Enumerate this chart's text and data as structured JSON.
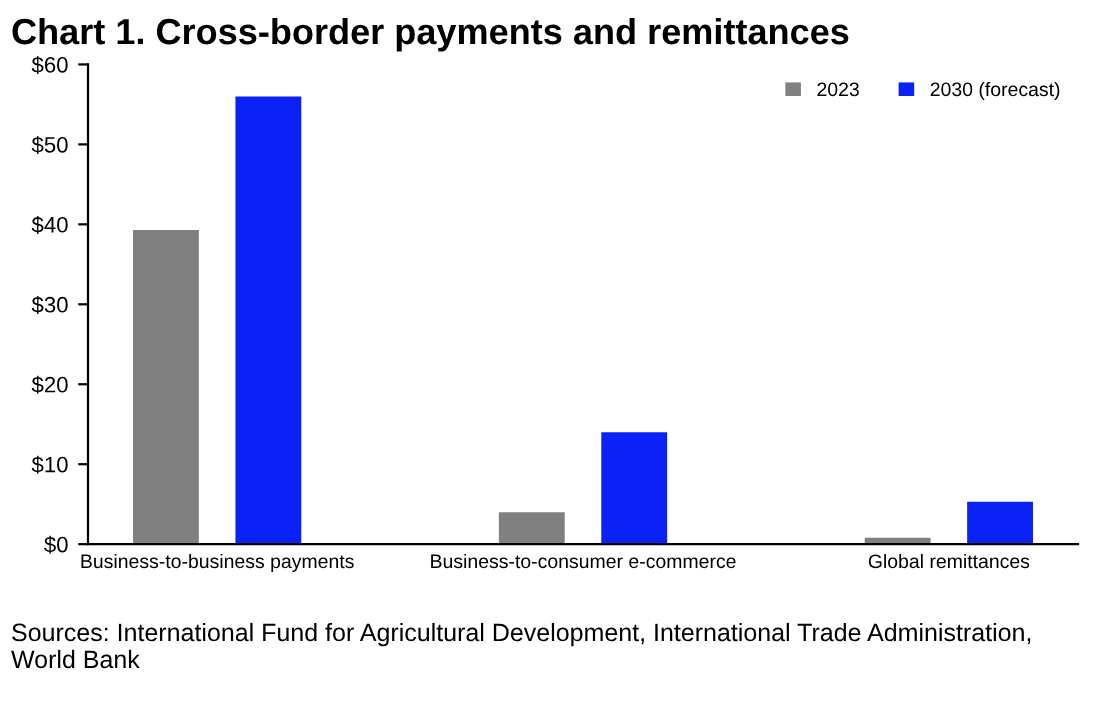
{
  "chart_data": {
    "type": "bar",
    "title": "Chart 1. Cross-border payments and remittances",
    "categories": [
      "Business-to-business payments",
      "Business-to-consumer e-commerce",
      "Global remittances"
    ],
    "series": [
      {
        "name": "2023",
        "color": "#808080",
        "values": [
          39.3,
          4,
          0.8
        ]
      },
      {
        "name": "2030 (forecast)",
        "color": "#0a22f5",
        "values": [
          56,
          14,
          5.3
        ]
      }
    ],
    "ylim": [
      0,
      60
    ],
    "yticks": [
      {
        "value": 0,
        "label": "$0"
      },
      {
        "value": 10,
        "label": "$10"
      },
      {
        "value": 20,
        "label": "$20"
      },
      {
        "value": 30,
        "label": "$30"
      },
      {
        "value": 40,
        "label": "$40"
      },
      {
        "value": 50,
        "label": "$50"
      },
      {
        "value": 60,
        "label": "$60"
      }
    ],
    "grid": false,
    "legend": "top right",
    "annotations": [
      "Sources: International Fund for Agricultural Development, International Trade Administration, World Bank"
    ]
  }
}
